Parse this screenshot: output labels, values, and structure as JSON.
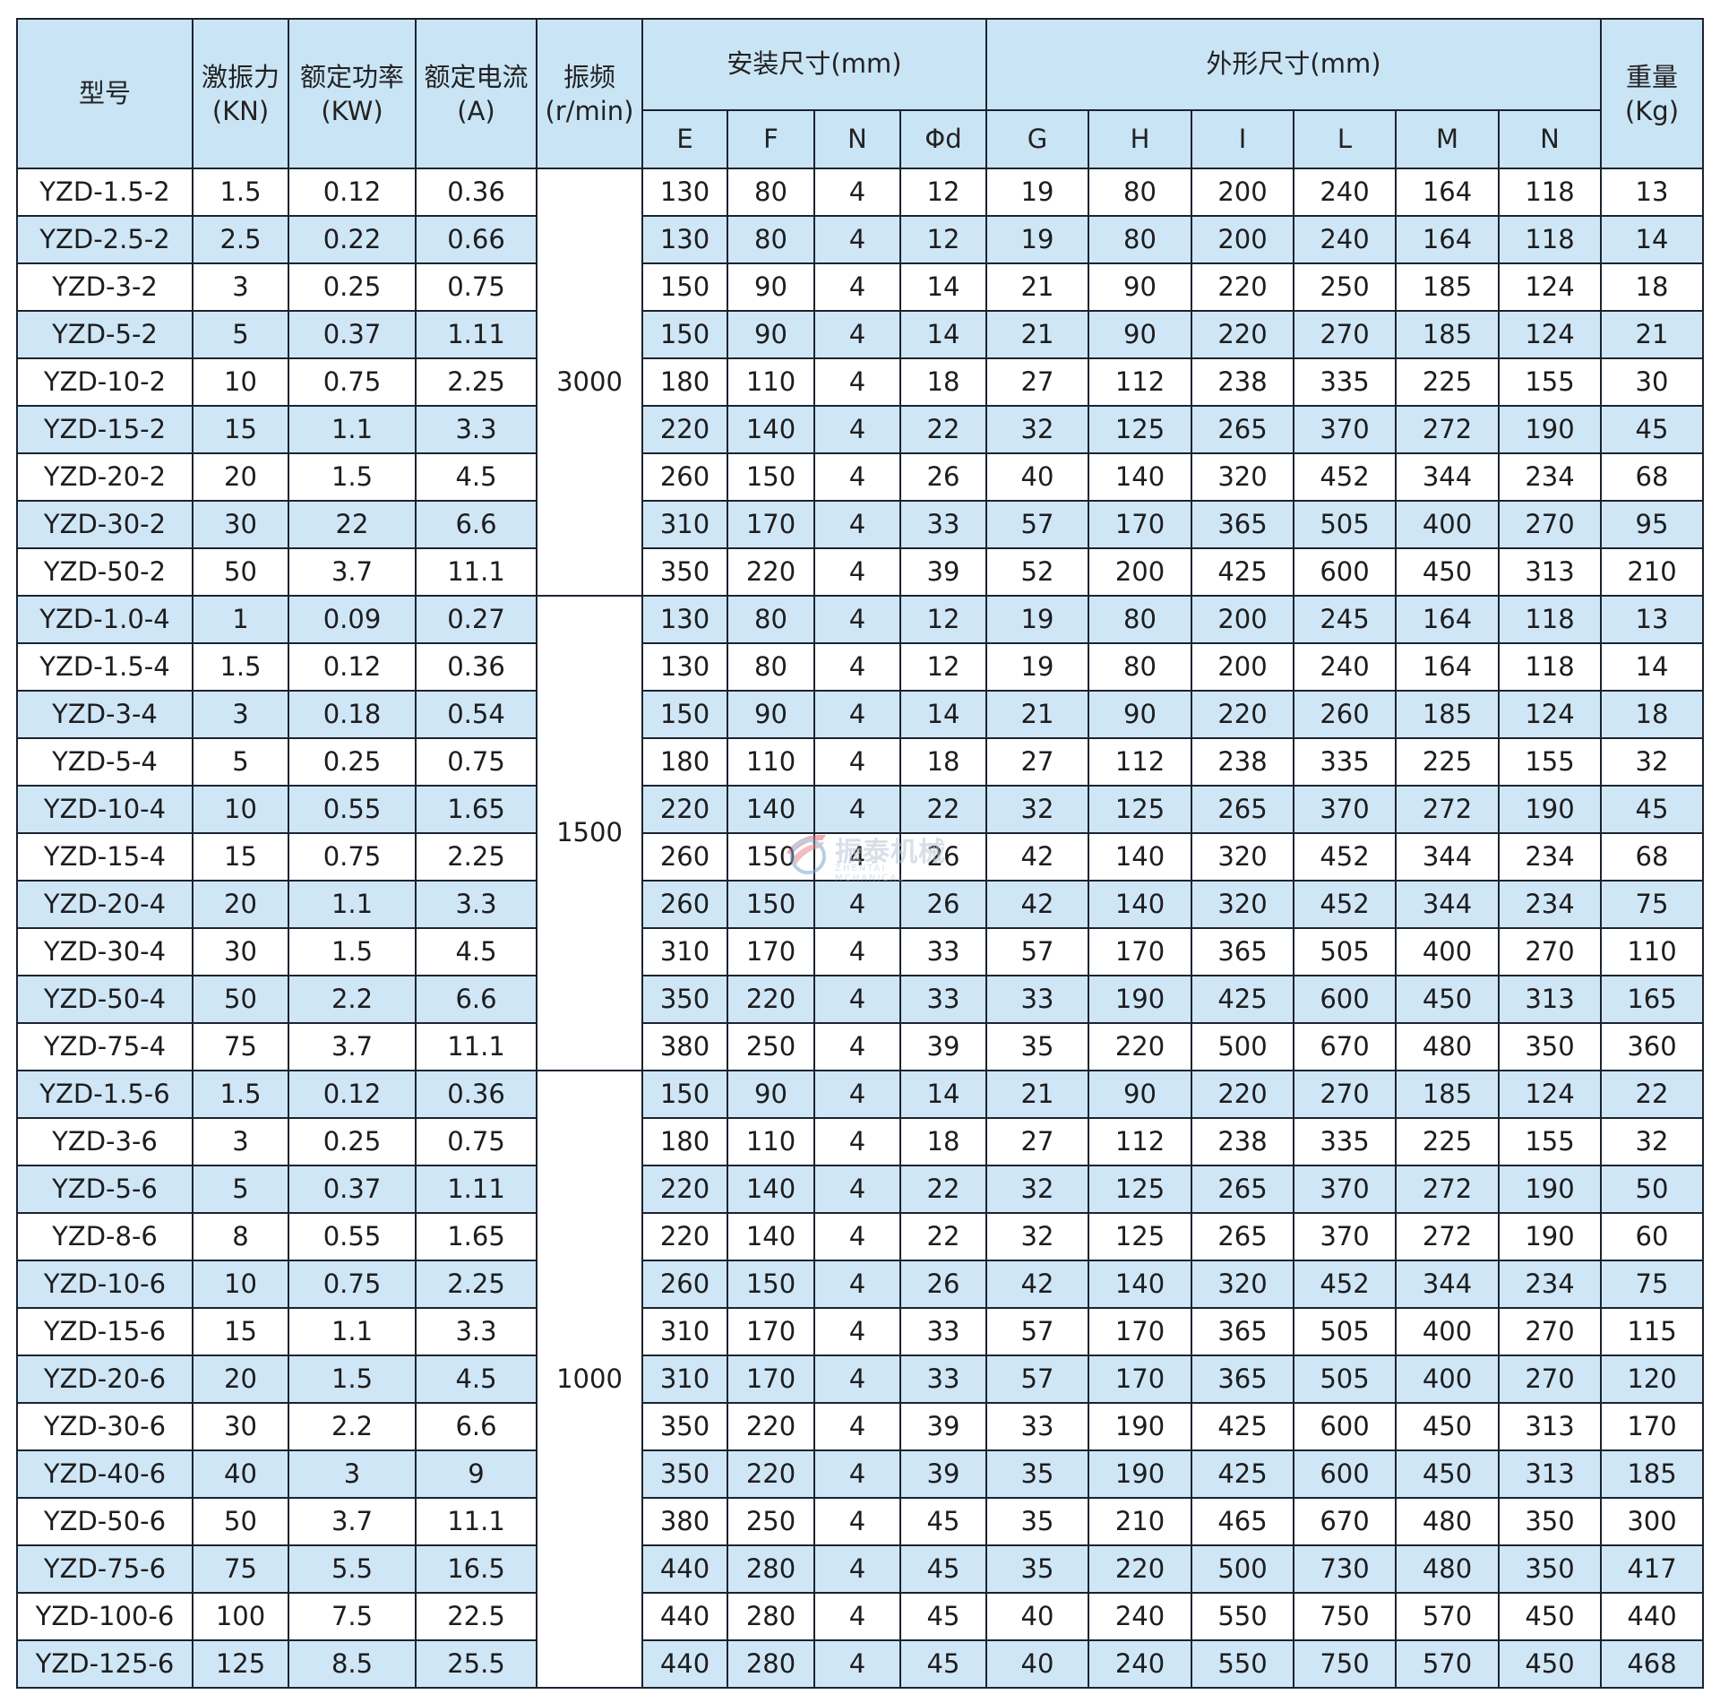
{
  "header": {
    "model": "型号",
    "force": [
      "激振力",
      "(KN)"
    ],
    "power": [
      "额定功率",
      "(KW)"
    ],
    "current": [
      "额定电流",
      "(A)"
    ],
    "frequency": [
      "振频",
      "(r/min)"
    ],
    "install_group": "安装尺寸(mm)",
    "outline_group": "外形尺寸(mm)",
    "weight": [
      "重量",
      "(Kg)"
    ],
    "install_cols": [
      "E",
      "F",
      "N",
      "Φd"
    ],
    "outline_cols": [
      "G",
      "H",
      "I",
      "L",
      "M",
      "N"
    ]
  },
  "groups": [
    {
      "frequency": "3000",
      "rows": 9
    },
    {
      "frequency": "1500",
      "rows": 10
    },
    {
      "frequency": "1000",
      "rows": 13
    }
  ],
  "rows": [
    {
      "model": "YZD-1.5-2",
      "force": "1.5",
      "power": "0.12",
      "current": "0.36",
      "E": "130",
      "F": "80",
      "N": "4",
      "d": "12",
      "G": "19",
      "H": "80",
      "I": "200",
      "L": "240",
      "M": "164",
      "N2": "118",
      "weight": "13"
    },
    {
      "model": "YZD-2.5-2",
      "force": "2.5",
      "power": "0.22",
      "current": "0.66",
      "E": "130",
      "F": "80",
      "N": "4",
      "d": "12",
      "G": "19",
      "H": "80",
      "I": "200",
      "L": "240",
      "M": "164",
      "N2": "118",
      "weight": "14"
    },
    {
      "model": "YZD-3-2",
      "force": "3",
      "power": "0.25",
      "current": "0.75",
      "E": "150",
      "F": "90",
      "N": "4",
      "d": "14",
      "G": "21",
      "H": "90",
      "I": "220",
      "L": "250",
      "M": "185",
      "N2": "124",
      "weight": "18"
    },
    {
      "model": "YZD-5-2",
      "force": "5",
      "power": "0.37",
      "current": "1.11",
      "E": "150",
      "F": "90",
      "N": "4",
      "d": "14",
      "G": "21",
      "H": "90",
      "I": "220",
      "L": "270",
      "M": "185",
      "N2": "124",
      "weight": "21"
    },
    {
      "model": "YZD-10-2",
      "force": "10",
      "power": "0.75",
      "current": "2.25",
      "E": "180",
      "F": "110",
      "N": "4",
      "d": "18",
      "G": "27",
      "H": "112",
      "I": "238",
      "L": "335",
      "M": "225",
      "N2": "155",
      "weight": "30"
    },
    {
      "model": "YZD-15-2",
      "force": "15",
      "power": "1.1",
      "current": "3.3",
      "E": "220",
      "F": "140",
      "N": "4",
      "d": "22",
      "G": "32",
      "H": "125",
      "I": "265",
      "L": "370",
      "M": "272",
      "N2": "190",
      "weight": "45"
    },
    {
      "model": "YZD-20-2",
      "force": "20",
      "power": "1.5",
      "current": "4.5",
      "E": "260",
      "F": "150",
      "N": "4",
      "d": "26",
      "G": "40",
      "H": "140",
      "I": "320",
      "L": "452",
      "M": "344",
      "N2": "234",
      "weight": "68"
    },
    {
      "model": "YZD-30-2",
      "force": "30",
      "power": "22",
      "current": "6.6",
      "E": "310",
      "F": "170",
      "N": "4",
      "d": "33",
      "G": "57",
      "H": "170",
      "I": "365",
      "L": "505",
      "M": "400",
      "N2": "270",
      "weight": "95"
    },
    {
      "model": "YZD-50-2",
      "force": "50",
      "power": "3.7",
      "current": "11.1",
      "E": "350",
      "F": "220",
      "N": "4",
      "d": "39",
      "G": "52",
      "H": "200",
      "I": "425",
      "L": "600",
      "M": "450",
      "N2": "313",
      "weight": "210"
    },
    {
      "model": "YZD-1.0-4",
      "force": "1",
      "power": "0.09",
      "current": "0.27",
      "E": "130",
      "F": "80",
      "N": "4",
      "d": "12",
      "G": "19",
      "H": "80",
      "I": "200",
      "L": "245",
      "M": "164",
      "N2": "118",
      "weight": "13"
    },
    {
      "model": "YZD-1.5-4",
      "force": "1.5",
      "power": "0.12",
      "current": "0.36",
      "E": "130",
      "F": "80",
      "N": "4",
      "d": "12",
      "G": "19",
      "H": "80",
      "I": "200",
      "L": "240",
      "M": "164",
      "N2": "118",
      "weight": "14"
    },
    {
      "model": "YZD-3-4",
      "force": "3",
      "power": "0.18",
      "current": "0.54",
      "E": "150",
      "F": "90",
      "N": "4",
      "d": "14",
      "G": "21",
      "H": "90",
      "I": "220",
      "L": "260",
      "M": "185",
      "N2": "124",
      "weight": "18"
    },
    {
      "model": "YZD-5-4",
      "force": "5",
      "power": "0.25",
      "current": "0.75",
      "E": "180",
      "F": "110",
      "N": "4",
      "d": "18",
      "G": "27",
      "H": "112",
      "I": "238",
      "L": "335",
      "M": "225",
      "N2": "155",
      "weight": "32"
    },
    {
      "model": "YZD-10-4",
      "force": "10",
      "power": "0.55",
      "current": "1.65",
      "E": "220",
      "F": "140",
      "N": "4",
      "d": "22",
      "G": "32",
      "H": "125",
      "I": "265",
      "L": "370",
      "M": "272",
      "N2": "190",
      "weight": "45"
    },
    {
      "model": "YZD-15-4",
      "force": "15",
      "power": "0.75",
      "current": "2.25",
      "E": "260",
      "F": "150",
      "N": "4",
      "d": "26",
      "G": "42",
      "H": "140",
      "I": "320",
      "L": "452",
      "M": "344",
      "N2": "234",
      "weight": "68"
    },
    {
      "model": "YZD-20-4",
      "force": "20",
      "power": "1.1",
      "current": "3.3",
      "E": "260",
      "F": "150",
      "N": "4",
      "d": "26",
      "G": "42",
      "H": "140",
      "I": "320",
      "L": "452",
      "M": "344",
      "N2": "234",
      "weight": "75"
    },
    {
      "model": "YZD-30-4",
      "force": "30",
      "power": "1.5",
      "current": "4.5",
      "E": "310",
      "F": "170",
      "N": "4",
      "d": "33",
      "G": "57",
      "H": "170",
      "I": "365",
      "L": "505",
      "M": "400",
      "N2": "270",
      "weight": "110"
    },
    {
      "model": "YZD-50-4",
      "force": "50",
      "power": "2.2",
      "current": "6.6",
      "E": "350",
      "F": "220",
      "N": "4",
      "d": "33",
      "G": "33",
      "H": "190",
      "I": "425",
      "L": "600",
      "M": "450",
      "N2": "313",
      "weight": "165"
    },
    {
      "model": "YZD-75-4",
      "force": "75",
      "power": "3.7",
      "current": "11.1",
      "E": "380",
      "F": "250",
      "N": "4",
      "d": "39",
      "G": "35",
      "H": "220",
      "I": "500",
      "L": "670",
      "M": "480",
      "N2": "350",
      "weight": "360"
    },
    {
      "model": "YZD-1.5-6",
      "force": "1.5",
      "power": "0.12",
      "current": "0.36",
      "E": "150",
      "F": "90",
      "N": "4",
      "d": "14",
      "G": "21",
      "H": "90",
      "I": "220",
      "L": "270",
      "M": "185",
      "N2": "124",
      "weight": "22"
    },
    {
      "model": "YZD-3-6",
      "force": "3",
      "power": "0.25",
      "current": "0.75",
      "E": "180",
      "F": "110",
      "N": "4",
      "d": "18",
      "G": "27",
      "H": "112",
      "I": "238",
      "L": "335",
      "M": "225",
      "N2": "155",
      "weight": "32"
    },
    {
      "model": "YZD-5-6",
      "force": "5",
      "power": "0.37",
      "current": "1.11",
      "E": "220",
      "F": "140",
      "N": "4",
      "d": "22",
      "G": "32",
      "H": "125",
      "I": "265",
      "L": "370",
      "M": "272",
      "N2": "190",
      "weight": "50"
    },
    {
      "model": "YZD-8-6",
      "force": "8",
      "power": "0.55",
      "current": "1.65",
      "E": "220",
      "F": "140",
      "N": "4",
      "d": "22",
      "G": "32",
      "H": "125",
      "I": "265",
      "L": "370",
      "M": "272",
      "N2": "190",
      "weight": "60"
    },
    {
      "model": "YZD-10-6",
      "force": "10",
      "power": "0.75",
      "current": "2.25",
      "E": "260",
      "F": "150",
      "N": "4",
      "d": "26",
      "G": "42",
      "H": "140",
      "I": "320",
      "L": "452",
      "M": "344",
      "N2": "234",
      "weight": "75"
    },
    {
      "model": "YZD-15-6",
      "force": "15",
      "power": "1.1",
      "current": "3.3",
      "E": "310",
      "F": "170",
      "N": "4",
      "d": "33",
      "G": "57",
      "H": "170",
      "I": "365",
      "L": "505",
      "M": "400",
      "N2": "270",
      "weight": "115"
    },
    {
      "model": "YZD-20-6",
      "force": "20",
      "power": "1.5",
      "current": "4.5",
      "E": "310",
      "F": "170",
      "N": "4",
      "d": "33",
      "G": "57",
      "H": "170",
      "I": "365",
      "L": "505",
      "M": "400",
      "N2": "270",
      "weight": "120"
    },
    {
      "model": "YZD-30-6",
      "force": "30",
      "power": "2.2",
      "current": "6.6",
      "E": "350",
      "F": "220",
      "N": "4",
      "d": "39",
      "G": "33",
      "H": "190",
      "I": "425",
      "L": "600",
      "M": "450",
      "N2": "313",
      "weight": "170"
    },
    {
      "model": "YZD-40-6",
      "force": "40",
      "power": "3",
      "current": "9",
      "E": "350",
      "F": "220",
      "N": "4",
      "d": "39",
      "G": "35",
      "H": "190",
      "I": "425",
      "L": "600",
      "M": "450",
      "N2": "313",
      "weight": "185"
    },
    {
      "model": "YZD-50-6",
      "force": "50",
      "power": "3.7",
      "current": "11.1",
      "E": "380",
      "F": "250",
      "N": "4",
      "d": "45",
      "G": "35",
      "H": "210",
      "I": "465",
      "L": "670",
      "M": "480",
      "N2": "350",
      "weight": "300"
    },
    {
      "model": "YZD-75-6",
      "force": "75",
      "power": "5.5",
      "current": "16.5",
      "E": "440",
      "F": "280",
      "N": "4",
      "d": "45",
      "G": "35",
      "H": "220",
      "I": "500",
      "L": "730",
      "M": "480",
      "N2": "350",
      "weight": "417"
    },
    {
      "model": "YZD-100-6",
      "force": "100",
      "power": "7.5",
      "current": "22.5",
      "E": "440",
      "F": "280",
      "N": "4",
      "d": "45",
      "G": "40",
      "H": "240",
      "I": "550",
      "L": "750",
      "M": "570",
      "N2": "450",
      "weight": "440"
    },
    {
      "model": "YZD-125-6",
      "force": "125",
      "power": "8.5",
      "current": "25.5",
      "E": "440",
      "F": "280",
      "N": "4",
      "d": "45",
      "G": "40",
      "H": "240",
      "I": "550",
      "L": "750",
      "M": "570",
      "N2": "450",
      "weight": "468"
    }
  ],
  "row_shading": [
    "white",
    "blue",
    "white",
    "blue",
    "white",
    "blue",
    "white",
    "blue",
    "white",
    "blue",
    "white",
    "blue",
    "white",
    "blue",
    "white",
    "blue",
    "white",
    "blue",
    "white",
    "blue",
    "white",
    "blue",
    "white",
    "blue",
    "white",
    "blue",
    "white",
    "blue",
    "white",
    "blue",
    "white",
    "blue"
  ],
  "watermark": {
    "text": "振泰机械",
    "subtext": "ZHENTAI MCHANICAL",
    "mark": "®"
  },
  "colors": {
    "header_bg": "#c9e4f5",
    "row_blue": "#cfe6f7",
    "row_white": "#ffffff",
    "border": "#1b2330"
  }
}
